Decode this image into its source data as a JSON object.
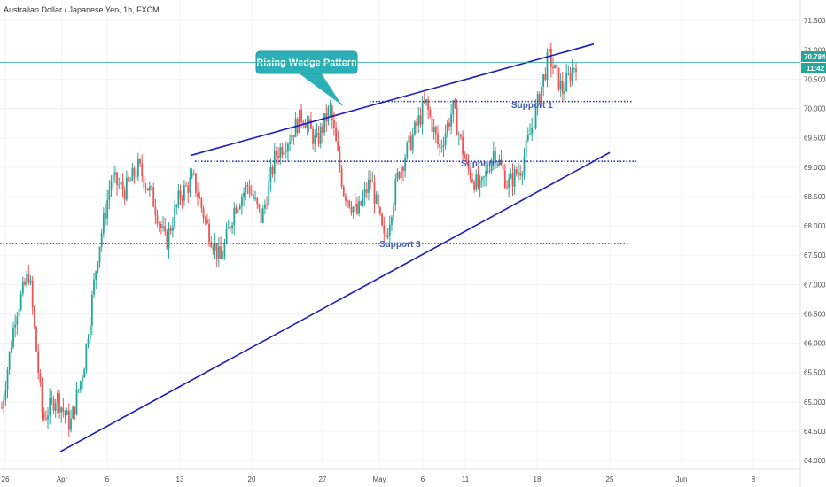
{
  "chart_data": {
    "type": "candlestick",
    "title": "Australian Dollar / Japanese Yen, 1h, FXCM",
    "x_ticks": [
      "26",
      "Apr",
      "6",
      "13",
      "20",
      "27",
      "May",
      "6",
      "11",
      "18",
      "25",
      "Jun",
      "8"
    ],
    "y_ticks": [
      "71.500",
      "71.000",
      "70.500",
      "70.000",
      "69.500",
      "69.000",
      "68.500",
      "68.000",
      "67.500",
      "67.000",
      "66.500",
      "66.000",
      "65.500",
      "65.000",
      "64.500",
      "64.000"
    ],
    "ylim": [
      63.85,
      71.85
    ],
    "price_badge": "70.784",
    "timer_badge": "11:42",
    "current_price": 70.784,
    "colors": {
      "up": "#26a69a",
      "down": "#ef5350",
      "trendline": "#1f1fbf",
      "support": "#2d2db8",
      "callout": "#2bb0b8",
      "price_line": "#26a69a"
    },
    "annotations": {
      "callout": "Rising Wedge Pattern",
      "support_1": "Support 1",
      "support_2": "Support 2",
      "support_3": "Support 3"
    },
    "key_points": [
      64.9,
      66.5,
      67.2,
      64.7,
      65.1,
      64.6,
      65.6,
      67.5,
      68.8,
      68.6,
      69.0,
      68.5,
      67.7,
      68.5,
      68.8,
      68.0,
      67.4,
      68.3,
      68.7,
      68.1,
      69.2,
      69.5,
      69.9,
      69.4,
      70.0,
      68.6,
      68.2,
      68.8,
      67.7,
      68.9,
      69.5,
      70.1,
      69.3,
      70.0,
      69.0,
      68.6,
      69.3,
      68.7,
      69.0,
      69.9,
      70.9,
      70.3,
      70.8
    ],
    "support_levels": [
      70.12,
      69.1,
      67.7
    ],
    "wedge_upper": [
      [
        69.2,
        215
      ],
      [
        71.1,
        670
      ]
    ],
    "wedge_lower": [
      [
        64.15,
        68
      ],
      [
        69.25,
        688
      ]
    ]
  }
}
